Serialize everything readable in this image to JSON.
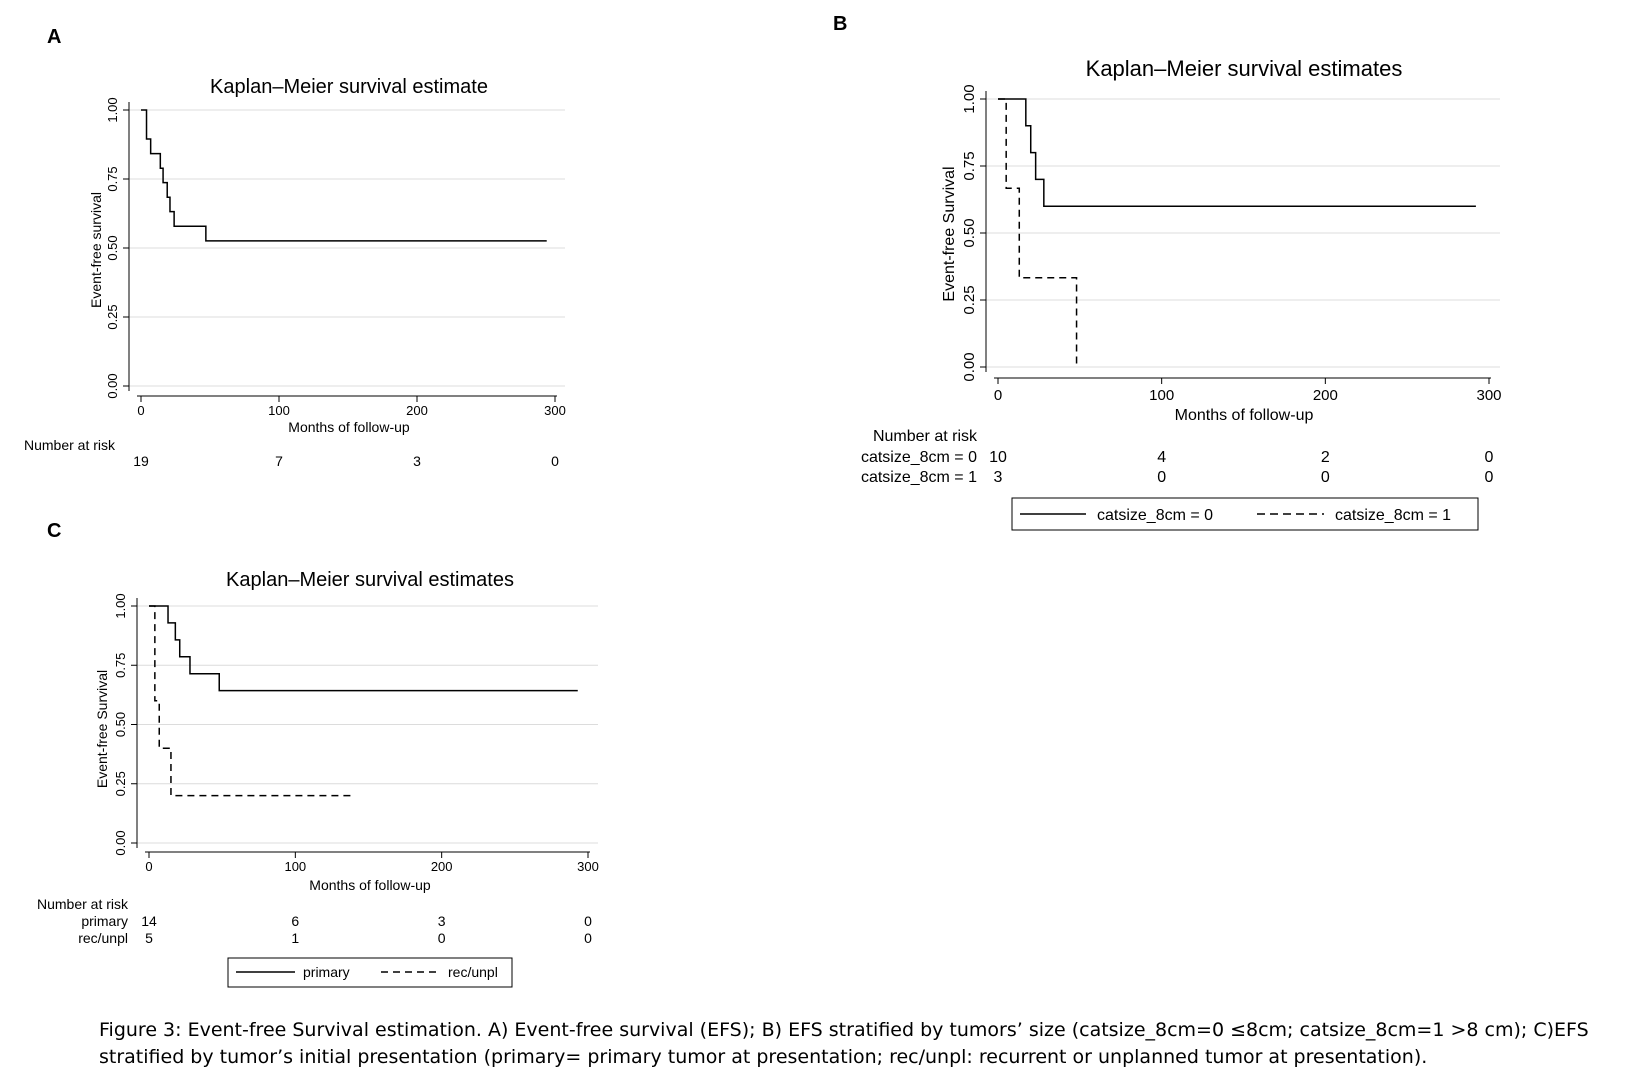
{
  "caption": "Figure 3: Event-free Survival estimation. A) Event-free survival (EFS); B) EFS stratified by tumors’ size (catsize_8cm=0  ≤8cm; catsize_8cm=1 >8 cm); C)EFS stratified by tumor’s initial presentation (primary= primary tumor at presentation; rec/unpl: recurrent or unplanned tumor at presentation).",
  "chart_data": [
    {
      "panel": "A",
      "type": "line",
      "title": "Kaplan–Meier survival estimate",
      "xlabel": "Months of follow-up",
      "ylabel": "Event-free survival",
      "xlim": [
        0,
        300
      ],
      "ylim": [
        0,
        1
      ],
      "xticks": [
        "0",
        "100",
        "200",
        "300"
      ],
      "yticks": [
        "0.00",
        "0.25",
        "0.50",
        "0.75",
        "1.00"
      ],
      "grid": true,
      "series": [
        {
          "x": [
            0,
            4,
            7,
            14,
            16,
            19,
            21,
            24,
            29,
            47,
            294
          ],
          "y": [
            1.0,
            0.895,
            0.842,
            0.789,
            0.737,
            0.684,
            0.632,
            0.579,
            0.579,
            0.526,
            0.526
          ],
          "dash": false
        }
      ],
      "risk": {
        "header": "Number at risk",
        "rows": [
          {
            "label": "",
            "values": [
              "19",
              "7",
              "3",
              "0"
            ]
          }
        ]
      }
    },
    {
      "panel": "B",
      "type": "line",
      "title": "Kaplan–Meier survival estimates",
      "xlabel": "Months of follow-up",
      "ylabel": "Event-free Survival",
      "xlim": [
        0,
        300
      ],
      "ylim": [
        0,
        1
      ],
      "xticks": [
        "0",
        "100",
        "200",
        "300"
      ],
      "yticks": [
        "0.00",
        "0.25",
        "0.50",
        "0.75",
        "1.00"
      ],
      "grid": true,
      "series": [
        {
          "name": "catsize_8cm = 0",
          "x": [
            0,
            17,
            20,
            23,
            28,
            292
          ],
          "y": [
            1.0,
            0.9,
            0.8,
            0.7,
            0.6,
            0.6
          ],
          "dash": false
        },
        {
          "name": "catsize_8cm = 1",
          "x": [
            0,
            5,
            13,
            48
          ],
          "y": [
            1.0,
            0.667,
            0.333,
            0.0
          ],
          "dash": true
        }
      ],
      "risk": {
        "header": "Number at risk",
        "rows": [
          {
            "label": "catsize_8cm = 0",
            "values": [
              "10",
              "4",
              "2",
              "0"
            ]
          },
          {
            "label": "catsize_8cm = 1",
            "values": [
              "3",
              "0",
              "0",
              "0"
            ]
          }
        ]
      },
      "legend": "bottom"
    },
    {
      "panel": "C",
      "type": "line",
      "title": "Kaplan–Meier survival estimates",
      "xlabel": "Months of follow-up",
      "ylabel": "Event-free Survival",
      "xlim": [
        0,
        300
      ],
      "ylim": [
        0,
        1
      ],
      "xticks": [
        "0",
        "100",
        "200",
        "300"
      ],
      "yticks": [
        "0.00",
        "0.25",
        "0.50",
        "0.75",
        "1.00"
      ],
      "grid": true,
      "series": [
        {
          "name": "primary",
          "x": [
            0,
            13,
            18,
            21,
            28,
            48,
            293
          ],
          "y": [
            1.0,
            0.929,
            0.857,
            0.786,
            0.714,
            0.643,
            0.643
          ],
          "dash": false
        },
        {
          "name": "rec/unpl",
          "x": [
            0,
            4,
            7,
            15,
            138
          ],
          "y": [
            1.0,
            0.6,
            0.4,
            0.2,
            0.2
          ],
          "dash": true
        }
      ],
      "risk": {
        "header": "Number at risk",
        "rows": [
          {
            "label": "primary",
            "values": [
              "14",
              "6",
              "3",
              "0"
            ]
          },
          {
            "label": "rec/unpl",
            "values": [
              "5",
              "1",
              "0",
              "0"
            ]
          }
        ]
      },
      "legend": "bottom"
    }
  ]
}
